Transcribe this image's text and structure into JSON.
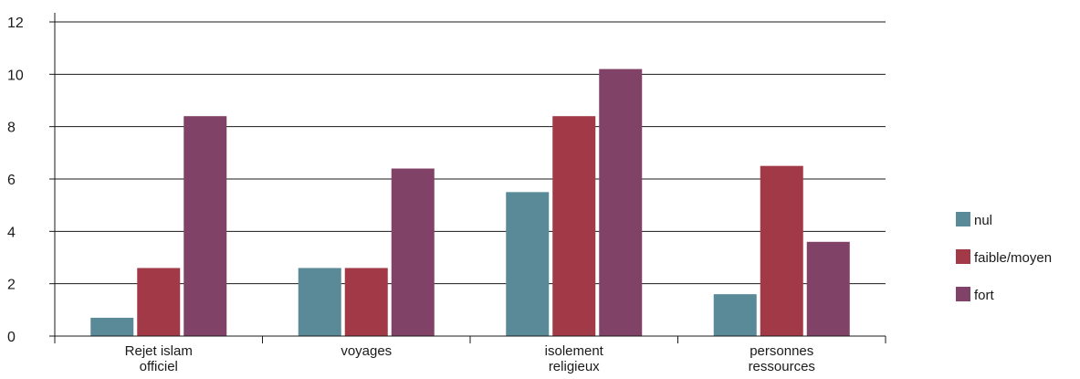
{
  "chart_data": {
    "type": "bar",
    "categories": [
      [
        "Rejet islam",
        "officiel"
      ],
      [
        "voyages"
      ],
      [
        "isolement",
        "religieux"
      ],
      [
        "personnes",
        "ressources"
      ]
    ],
    "series": [
      {
        "name": "nul",
        "color": "#5a8a98",
        "values": [
          0.7,
          2.6,
          5.5,
          1.6
        ]
      },
      {
        "name": "faible/moyen",
        "color": "#a13a46",
        "values": [
          2.6,
          2.6,
          8.4,
          6.5
        ]
      },
      {
        "name": "fort",
        "color": "#804266",
        "values": [
          8.4,
          6.4,
          10.2,
          3.6
        ]
      }
    ],
    "ylim": [
      0,
      12
    ],
    "yticks": [
      0,
      2,
      4,
      6,
      8,
      10,
      12
    ],
    "grid": true,
    "legend_position": "right",
    "title": "",
    "xlabel": "",
    "ylabel": ""
  }
}
